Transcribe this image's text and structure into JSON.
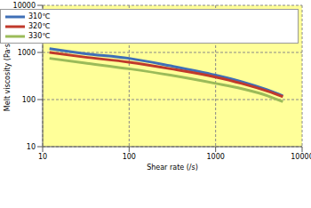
{
  "chart_data": {
    "type": "line",
    "x_label": "Shear rate (/s)",
    "y_label": "Melt viscosity (Pa·s)",
    "x": [
      12,
      30,
      100,
      300,
      1000,
      2000,
      4000,
      6000
    ],
    "series": [
      {
        "name": "310℃",
        "color": "#3f6fb6",
        "values": [
          1200,
          950,
          750,
          520,
          330,
          240,
          160,
          120
        ]
      },
      {
        "name": "320℃",
        "color": "#c0392b",
        "values": [
          1000,
          800,
          620,
          450,
          300,
          220,
          150,
          115
        ]
      },
      {
        "name": "330℃",
        "color": "#9bbb59",
        "values": [
          750,
          600,
          450,
          330,
          220,
          170,
          120,
          90
        ]
      }
    ],
    "xlim": [
      10,
      10000
    ],
    "ylim": [
      10,
      10000
    ],
    "xticks": [
      10,
      100,
      1000,
      10000
    ],
    "yticks": [
      10,
      100,
      1000,
      10000
    ],
    "log": true,
    "grid": true,
    "legend": "top-right"
  }
}
